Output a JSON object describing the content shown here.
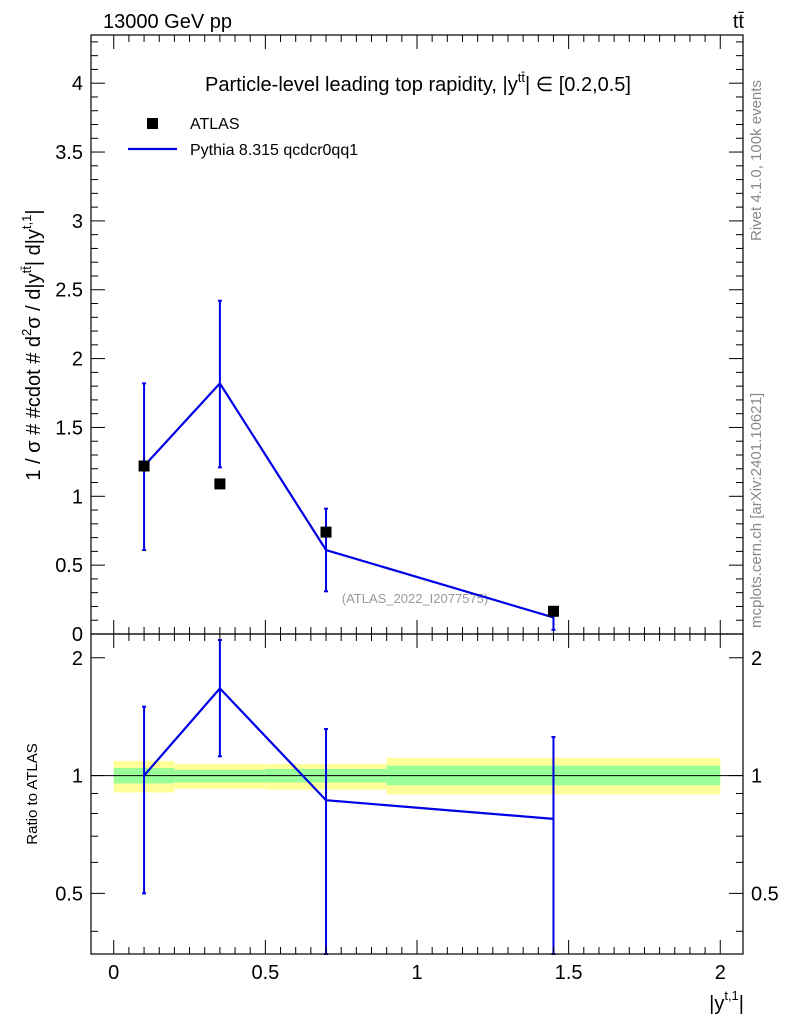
{
  "header": {
    "energy_label": "13000 GeV pp",
    "process_label": "tt̄"
  },
  "side": {
    "rivet": "Rivet 4.1.0,  100k events",
    "mcplots": "mcplots.cern.ch [arXiv:2401.10621]"
  },
  "colors": {
    "data": "#000000",
    "mc": "#0000e6",
    "band_outer": "#ffff99",
    "band_inner": "#99ff99"
  },
  "chart_data": [
    {
      "type": "scatter",
      "panel": "main",
      "title": "Particle-level leading top rapidity, |y^{tt̄}| ∈ [0.2,0.5]",
      "title_parts": {
        "pre": "Particle-level leading top rapidity, |",
        "y": "y",
        "sup": "tt̄",
        "post": "| ∈ [0.2,0.5]"
      },
      "ylabel": "1 / σ # #cdot # d²σ / d|y^{tt̄}| d|y^{t,1}|",
      "ylabel_parts": {
        "pre": "1 / σ # #cdot # d",
        "sup1": "2",
        "mid": "σ / d|y",
        "sup2": "tt̄",
        "mid2": "| d|y",
        "sup3": "t,1",
        "post": "|"
      },
      "watermark": "(ATLAS_2022_I2077575)",
      "xlim": [
        -0.075,
        2.075
      ],
      "ylim": [
        0,
        4.35
      ],
      "y_ticks": [
        0,
        0.5,
        1,
        1.5,
        2,
        2.5,
        3,
        3.5,
        4
      ],
      "y_tick_labels": [
        "0",
        "0.5",
        "1",
        "1.5",
        "2",
        "2.5",
        "3",
        "3.5",
        "4"
      ],
      "legend": {
        "position": "top-left",
        "entries": [
          "ATLAS",
          "Pythia 8.315 qcdcr0qq1"
        ]
      },
      "series": [
        {
          "name": "ATLAS",
          "style": "markers",
          "x": [
            0.1,
            0.35,
            0.7,
            1.45
          ],
          "y": [
            1.22,
            1.09,
            0.74,
            0.165
          ]
        },
        {
          "name": "Pythia 8.315 qcdcr0qq1",
          "style": "line",
          "x": [
            0.1,
            0.35,
            0.7,
            1.45
          ],
          "y": [
            1.22,
            1.82,
            0.61,
            0.12
          ],
          "err_low": [
            0.61,
            0.61,
            0.3,
            0.09
          ],
          "err_high": [
            0.6,
            0.6,
            0.3,
            0.04
          ]
        }
      ]
    },
    {
      "type": "line",
      "panel": "ratio",
      "ylabel": "Ratio to ATLAS",
      "xlabel": "|y^{t,1}|",
      "xlabel_parts": {
        "pre": "|y",
        "sup": "t,1",
        "post": "|"
      },
      "xlim": [
        -0.075,
        2.075
      ],
      "ylim": [
        0.35,
        2.3
      ],
      "x_ticks": [
        0,
        0.5,
        1,
        1.5,
        2
      ],
      "x_tick_labels": [
        "0",
        "0.5",
        "1",
        "1.5",
        "2"
      ],
      "y_ticks": [
        0.5,
        1,
        2
      ],
      "y_tick_labels": [
        "0.5",
        "1",
        "2"
      ],
      "bands": {
        "bins": [
          [
            0,
            0.2
          ],
          [
            0.2,
            0.5
          ],
          [
            0.5,
            0.9
          ],
          [
            0.9,
            1.45
          ],
          [
            1.45,
            2.0
          ]
        ],
        "outer_low": [
          0.905,
          0.925,
          0.92,
          0.895,
          0.895
        ],
        "outer_high": [
          1.09,
          1.07,
          1.07,
          1.11,
          1.11
        ],
        "inner_low": [
          0.955,
          0.96,
          0.96,
          0.945,
          0.945
        ],
        "inner_high": [
          1.045,
          1.035,
          1.04,
          1.06,
          1.06
        ]
      },
      "series": [
        {
          "name": "Pythia 8.315 qcdcr0qq1",
          "x": [
            0.1,
            0.35,
            0.7,
            1.45
          ],
          "y": [
            1.0,
            1.67,
            0.865,
            0.775
          ],
          "err_low": [
            0.5,
            0.55,
            0.52,
            0.45
          ],
          "err_high": [
            0.5,
            0.55,
            0.45,
            0.48
          ]
        }
      ]
    }
  ]
}
